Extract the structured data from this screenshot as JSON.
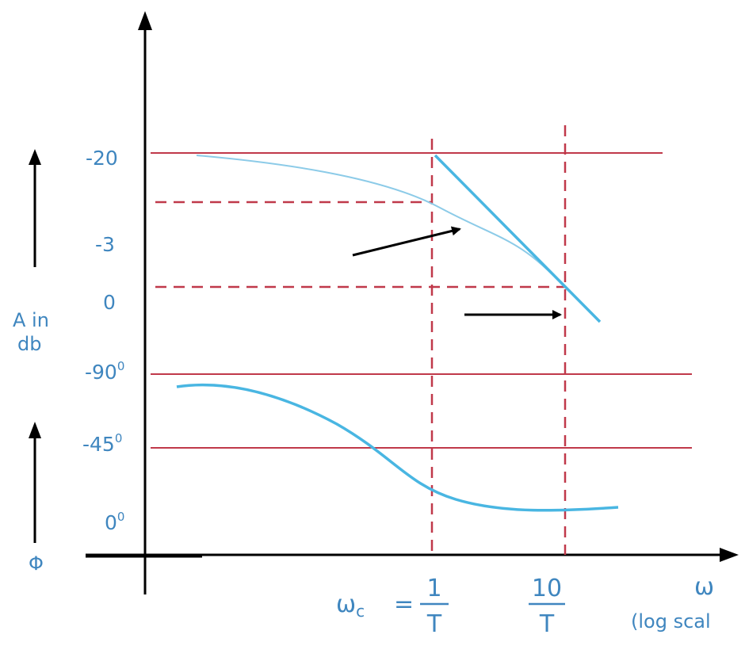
{
  "y_axis": {
    "magnitude_ticks": [
      "-20",
      "-3",
      "0"
    ],
    "phase_ticks": [
      {
        "value": "-90",
        "sup": "0"
      },
      {
        "value": "-45",
        "sup": "0"
      },
      {
        "value": "0",
        "sup": "0"
      }
    ],
    "magnitude_label_line1": "A in",
    "magnitude_label_line2": "db",
    "phase_label": "Φ"
  },
  "x_axis": {
    "omega_c_symbol": "ω",
    "omega_c_subscript": "c",
    "equals": "=",
    "first_numerator": "1",
    "first_denominator": "T",
    "second_numerator": "10",
    "second_denominator": "T",
    "axis_symbol": "ω",
    "scale_note": "(log scal"
  },
  "colors": {
    "grid_line": "#c0394a",
    "curve": "#49b6e2",
    "label": "#3f86bf",
    "axis": "#000000"
  }
}
